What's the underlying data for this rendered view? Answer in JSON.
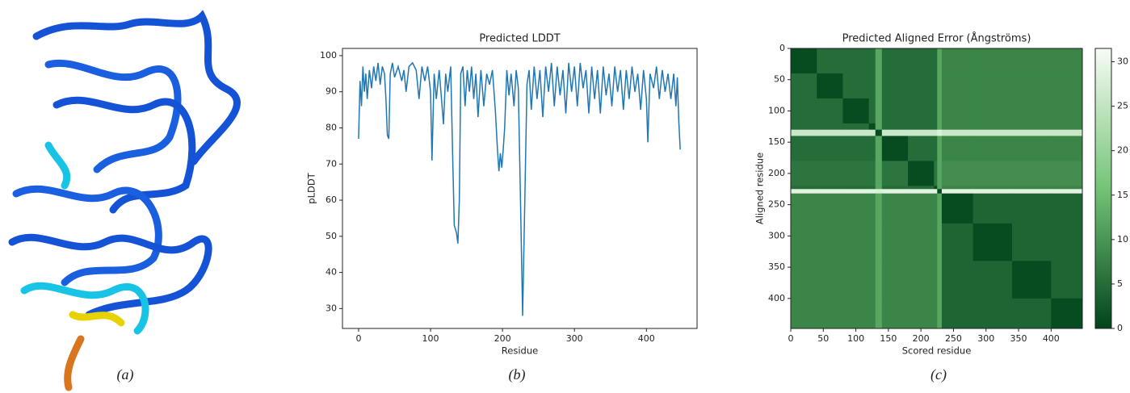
{
  "captions": [
    "(a)",
    "(b)",
    "(c)"
  ],
  "chart_data": [
    {
      "type": "line",
      "title": "Predicted LDDT",
      "x_label": "Residue",
      "y_label": "pLDDT",
      "xlim": [
        -22.4,
        470.4
      ],
      "ylim": [
        24.5,
        102
      ],
      "xticks": [
        0,
        100,
        200,
        300,
        400
      ],
      "yticks": [
        30,
        40,
        50,
        60,
        70,
        80,
        90,
        100
      ],
      "grid": false,
      "color": "#1f77b4",
      "x": [
        0,
        2,
        4,
        6,
        8,
        10,
        12,
        15,
        18,
        21,
        24,
        27,
        30,
        33,
        36,
        38,
        40,
        42,
        44,
        47,
        50,
        55,
        60,
        63,
        66,
        70,
        75,
        80,
        84,
        88,
        92,
        96,
        100,
        102,
        105,
        108,
        112,
        116,
        118,
        121,
        124,
        128,
        131,
        133,
        136,
        138,
        140,
        142,
        145,
        148,
        151,
        154,
        157,
        160,
        163,
        166,
        170,
        174,
        178,
        182,
        186,
        190,
        193,
        195,
        197,
        199,
        201,
        203,
        206,
        209,
        212,
        216,
        219,
        222,
        225,
        228,
        231,
        234,
        237,
        240,
        244,
        248,
        252,
        256,
        260,
        264,
        268,
        272,
        276,
        280,
        284,
        288,
        292,
        296,
        300,
        304,
        308,
        312,
        316,
        320,
        324,
        328,
        332,
        336,
        340,
        344,
        348,
        352,
        356,
        360,
        364,
        368,
        372,
        376,
        380,
        384,
        388,
        392,
        396,
        400,
        402,
        405,
        410,
        414,
        418,
        422,
        426,
        430,
        434,
        438,
        441,
        443,
        445,
        447
      ],
      "values": [
        77,
        93,
        86,
        97,
        90,
        95,
        88,
        96,
        91,
        97,
        93,
        98,
        92,
        97,
        95,
        88,
        78,
        77,
        95,
        98,
        94,
        97,
        93,
        96,
        90,
        97,
        98,
        96,
        88,
        97,
        93,
        97,
        90,
        71,
        95,
        88,
        96,
        86,
        81,
        95,
        90,
        97,
        70,
        53,
        51,
        48,
        60,
        95,
        97,
        86,
        96,
        90,
        97,
        88,
        95,
        83,
        96,
        86,
        95,
        92,
        96,
        85,
        74,
        68,
        73,
        69,
        74,
        80,
        96,
        89,
        95,
        86,
        96,
        91,
        60,
        28,
        60,
        92,
        96,
        85,
        97,
        88,
        96,
        83,
        97,
        90,
        98,
        86,
        97,
        89,
        96,
        84,
        98,
        90,
        97,
        86,
        98,
        91,
        96,
        84,
        97,
        88,
        96,
        84,
        97,
        89,
        95,
        86,
        97,
        90,
        96,
        85,
        96,
        88,
        97,
        90,
        95,
        85,
        96,
        88,
        76,
        95,
        91,
        97,
        88,
        96,
        90,
        95,
        88,
        95,
        86,
        94,
        82,
        74
      ]
    },
    {
      "type": "heatmap",
      "title": "Predicted Aligned Error (Ångströms)",
      "x_label": "Scored residue",
      "y_label": "Aligned residue",
      "xlim": [
        0,
        448
      ],
      "ylim": [
        448,
        0
      ],
      "xticks": [
        0,
        50,
        100,
        150,
        200,
        250,
        300,
        350,
        400
      ],
      "yticks": [
        0,
        50,
        100,
        150,
        200,
        250,
        300,
        350,
        400
      ],
      "x_bins": [
        0,
        40,
        80,
        120,
        130,
        140,
        180,
        220,
        225,
        232,
        280,
        340,
        400,
        448
      ],
      "y_bins": [
        0,
        40,
        80,
        120,
        130,
        140,
        180,
        220,
        225,
        232,
        280,
        340,
        400,
        448
      ],
      "colors": [
        "#00441b",
        "#74c476",
        "#f7fcf5"
      ],
      "clim": [
        0,
        31.5
      ],
      "cticks": [
        0,
        5,
        10,
        15,
        20,
        25,
        30
      ],
      "values": [
        [
          1,
          5,
          5,
          5,
          12,
          5,
          5,
          5,
          12,
          8,
          8,
          8,
          8
        ],
        [
          5,
          1,
          5,
          5,
          12,
          5,
          5,
          5,
          12,
          8,
          8,
          8,
          8
        ],
        [
          5,
          5,
          1,
          5,
          12,
          5,
          5,
          5,
          12,
          8,
          8,
          8,
          8
        ],
        [
          5,
          5,
          5,
          1,
          12,
          5,
          5,
          5,
          12,
          8,
          8,
          8,
          8
        ],
        [
          26,
          26,
          26,
          26,
          1,
          26,
          26,
          26,
          28,
          26,
          26,
          26,
          26
        ],
        [
          5,
          5,
          5,
          5,
          12,
          1,
          5,
          5,
          12,
          8,
          8,
          8,
          8
        ],
        [
          6,
          6,
          6,
          6,
          12,
          6,
          1,
          6,
          12,
          9,
          9,
          9,
          9
        ],
        [
          5,
          5,
          5,
          5,
          12,
          5,
          5,
          1,
          12,
          8,
          8,
          8,
          8
        ],
        [
          29,
          29,
          29,
          29,
          28,
          29,
          29,
          29,
          1,
          29,
          29,
          29,
          29
        ],
        [
          8,
          8,
          8,
          8,
          12,
          8,
          8,
          8,
          12,
          1,
          4,
          4,
          4
        ],
        [
          8,
          8,
          8,
          8,
          12,
          8,
          8,
          8,
          12,
          4,
          1,
          4,
          4
        ],
        [
          8,
          8,
          8,
          8,
          12,
          8,
          8,
          8,
          12,
          4,
          4,
          1,
          4
        ],
        [
          8,
          8,
          8,
          8,
          12,
          8,
          8,
          8,
          12,
          4,
          4,
          4,
          1
        ]
      ]
    }
  ]
}
